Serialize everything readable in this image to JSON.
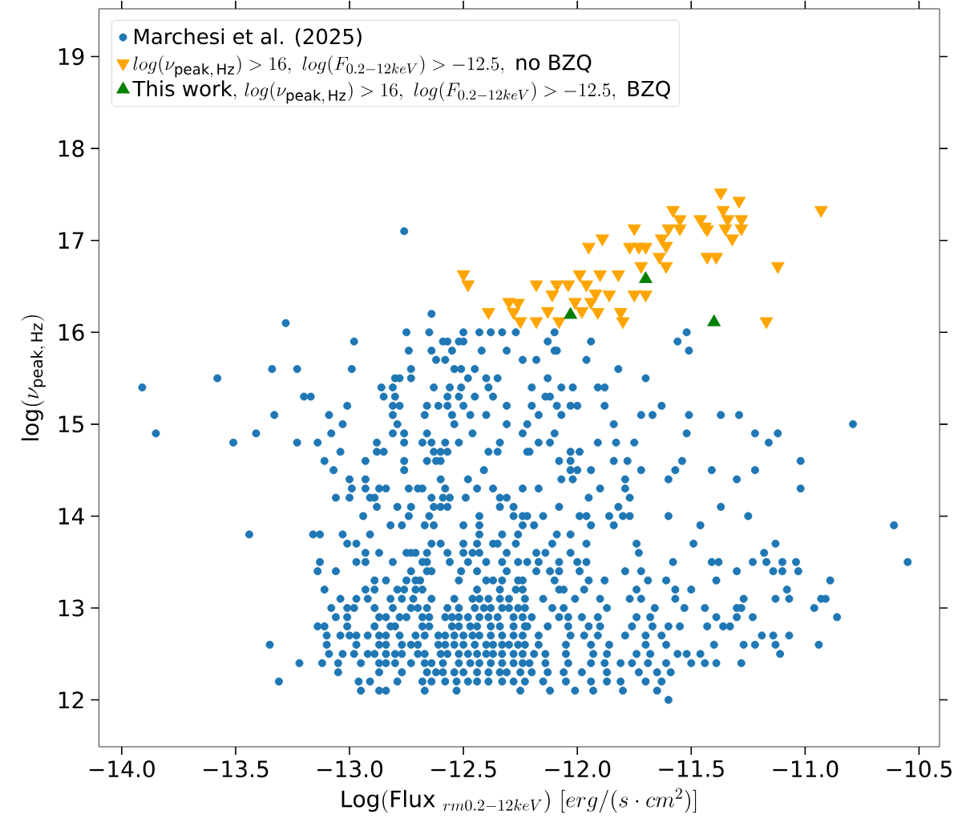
{
  "chart_data": {
    "type": "scatter",
    "xlabel": "\\mathrm{Log(Flux}\\ _{rm0.2-12keV})\\ [erg/(s\\cdot cm^{2})]",
    "ylabel": "\\mathrm{log}(\\nu_{\\mathrm{peak,\\,Hz}})",
    "xlim": [
      -14.1,
      -10.41
    ],
    "ylim": [
      11.49,
      19.52
    ],
    "xticks": [
      {
        "value": -14.0,
        "label": "−14.0"
      },
      {
        "value": -13.5,
        "label": "−13.5"
      },
      {
        "value": -13.0,
        "label": "−13.0"
      },
      {
        "value": -12.5,
        "label": "−12.5"
      },
      {
        "value": -12.0,
        "label": "−12.0"
      },
      {
        "value": -11.5,
        "label": "−11.5"
      },
      {
        "value": -11.0,
        "label": "−11.0"
      },
      {
        "value": -10.5,
        "label": "−10.5"
      }
    ],
    "yticks": [
      12,
      13,
      14,
      15,
      16,
      17,
      18,
      19
    ],
    "legend": "top left",
    "series": [
      {
        "name": "Marchesi et al. (2025)",
        "color": "#1f77b4",
        "marker": "circle",
        "x": [
          -12.76,
          -12.64,
          -13.28,
          -12.75,
          -12.65,
          -12.5,
          -12.43,
          -12.38,
          -12.33,
          -12.27,
          -12.1,
          -11.52,
          -12.98,
          -12.59,
          -12.57,
          -12.52,
          -12.5,
          -12.13,
          -11.94,
          -11.56,
          -12.74,
          -12.64,
          -12.55,
          -12.42,
          -12.31,
          -12.1,
          -12.09,
          -11.51,
          -12.62,
          -12.58,
          -12.24,
          -12.18,
          -11.96,
          -13.34,
          -13.23,
          -12.99,
          -12.73,
          -12.54,
          -12.51,
          -12.45,
          -11.82,
          -13.58,
          -12.8,
          -12.78,
          -12.73,
          -12.48,
          -12.4,
          -12.35,
          -12.13,
          -11.7,
          -13.91,
          -12.86,
          -12.81,
          -12.63,
          -12.56,
          -12.51,
          -12.39,
          -12.2,
          -12.07,
          -12.02,
          -11.91,
          -11.88,
          -13.2,
          -13.17,
          -12.85,
          -12.8,
          -12.57,
          -12.52,
          -12.45,
          -12.37,
          -12.14,
          -12.12,
          -13.01,
          -12.81,
          -12.78,
          -12.66,
          -12.61,
          -12.57,
          -12.5,
          -12.31,
          -12.2,
          -12.09,
          -12.03,
          -12.0,
          -11.88,
          -11.63,
          -13.33,
          -13.09,
          -12.81,
          -12.67,
          -12.55,
          -12.47,
          -12.4,
          -12.17,
          -12.07,
          -11.72,
          -11.67,
          -11.51,
          -11.37,
          -11.29,
          -13.03,
          -12.79,
          -12.54,
          -12.31,
          -12.22,
          -11.84,
          -10.79,
          -13.85,
          -13.41,
          -13.08,
          -12.81,
          -12.76,
          -12.66,
          -12.46,
          -12.24,
          -12.1,
          -11.52,
          -11.22,
          -11.12,
          -13.51,
          -13.23,
          -13.14,
          -12.88,
          -12.76,
          -12.68,
          -12.64,
          -12.58,
          -12.52,
          -12.34,
          -12.17,
          -12.12,
          -11.91,
          -11.83,
          -11.75,
          -11.16,
          -13.04,
          -12.88,
          -12.85,
          -12.63,
          -12.6,
          -12.57,
          -12.39,
          -12.35,
          -12.22,
          -12.21,
          -12.03,
          -11.99,
          -13.11,
          -12.93,
          -12.76,
          -12.66,
          -12.62,
          -12.6,
          -12.08,
          -12.03,
          -11.84,
          -11.78,
          -11.54,
          -11.02,
          -13.07,
          -12.76,
          -12.41,
          -12.03,
          -12.0,
          -11.94,
          -11.72,
          -11.57,
          -11.41,
          -11.22,
          -13.0,
          -12.93,
          -12.6,
          -12.48,
          -12.07,
          -12.02,
          -11.79,
          -11.6,
          -11.3,
          -12.99,
          -12.93,
          -12.87,
          -12.84,
          -12.74,
          -12.7,
          -12.68,
          -12.58,
          -12.44,
          -12.37,
          -12.24,
          -12.17,
          -11.9,
          -11.79,
          -11.02,
          -13.06,
          -13.0,
          -12.91,
          -12.89,
          -12.64,
          -12.59,
          -12.56,
          -12.49,
          -12.34,
          -12.31,
          -11.95,
          -11.77,
          -12.88,
          -12.79,
          -12.73,
          -12.63,
          -12.6,
          -12.57,
          -12.34,
          -12.28,
          -12.08,
          -11.82,
          -11.37,
          -12.94,
          -12.74,
          -12.65,
          -12.43,
          -12.24,
          -12.22,
          -12.28,
          -12.15,
          -11.99,
          -11.96,
          -11.86,
          -11.8,
          -11.77,
          -11.6,
          -11.25,
          -12.82,
          -12.77,
          -12.67,
          -12.63,
          -12.5,
          -12.43,
          -12.24,
          -12.19,
          -11.94,
          -11.84,
          -11.46,
          -10.61,
          -13.44,
          -13.16,
          -13.13,
          -13.03,
          -12.91,
          -12.43,
          -12.33,
          -12.26,
          -12.09,
          -12.03,
          -13.01,
          -12.97,
          -12.64,
          -12.6,
          -12.5,
          -12.44,
          -12.37,
          -12.35,
          -12.27,
          -12.11,
          -11.96,
          -11.74,
          -11.49,
          -11.13,
          -12.93,
          -12.87,
          -12.75,
          -12.73,
          -12.71,
          -12.66,
          -12.57,
          -12.5,
          -12.46,
          -12.43,
          -12.31,
          -12.18,
          -12.14,
          -12.03,
          -11.73,
          -11.18,
          -13.13,
          -12.97,
          -12.93,
          -12.81,
          -12.68,
          -12.66,
          -12.56,
          -12.48,
          -12.4,
          -12.33,
          -12.26,
          -12.22,
          -12.17,
          -12.08,
          -12.0,
          -11.96,
          -11.58,
          -11.41,
          -11.38,
          -11.23,
          -11.17,
          -11.1,
          -11.04,
          -10.55,
          -13.14,
          -13.06,
          -12.73,
          -12.66,
          -12.64,
          -12.51,
          -12.44,
          -12.31,
          -12.18,
          -12.12,
          -12.08,
          -11.99,
          -11.79,
          -11.72,
          -11.3,
          -11.14,
          -11.1,
          -11.03,
          -12.89,
          -12.84,
          -12.75,
          -12.71,
          -12.69,
          -12.52,
          -12.4,
          -12.37,
          -12.33,
          -12.26,
          -12.24,
          -12.1,
          -11.95,
          -11.88,
          -11.69,
          -11.61,
          -11.39,
          -10.89,
          -13.11,
          -12.93,
          -12.89,
          -12.79,
          -12.76,
          -12.71,
          -12.68,
          -12.44,
          -12.34,
          -12.27,
          -12.24,
          -12.08,
          -12.06,
          -11.97,
          -11.74,
          -11.57,
          -11.5,
          -11.08,
          -13.04,
          -12.97,
          -12.92,
          -12.82,
          -12.77,
          -12.72,
          -12.64,
          -12.54,
          -12.46,
          -12.43,
          -12.39,
          -12.34,
          -12.3,
          -12.23,
          -12.15,
          -12.01,
          -11.9,
          -11.77,
          -11.72,
          -11.57,
          -11.27,
          -11.13,
          -11.07,
          -10.93,
          -10.91,
          -13.08,
          -13.01,
          -12.98,
          -12.89,
          -12.81,
          -12.73,
          -12.7,
          -12.66,
          -12.57,
          -12.52,
          -12.45,
          -12.41,
          -12.38,
          -12.33,
          -12.3,
          -12.26,
          -12.23,
          -12.11,
          -12.06,
          -11.87,
          -11.66,
          -11.53,
          -11.44,
          -11.3,
          -11.28,
          -10.96,
          -13.06,
          -13.01,
          -12.87,
          -12.84,
          -12.78,
          -12.75,
          -12.68,
          -12.65,
          -12.58,
          -12.55,
          -12.52,
          -12.48,
          -12.43,
          -12.39,
          -12.35,
          -12.28,
          -12.24,
          -12.2,
          -12.08,
          -12.04,
          -11.98,
          -11.91,
          -11.74,
          -11.68,
          -11.39,
          -11.3,
          -11.23,
          -10.86,
          -13.14,
          -13.11,
          -13.01,
          -12.89,
          -12.82,
          -12.8,
          -12.68,
          -12.65,
          -12.55,
          -12.52,
          -12.47,
          -12.44,
          -12.38,
          -12.34,
          -12.28,
          -12.23,
          -12.22,
          -12.13,
          -12.04,
          -11.95,
          -11.9,
          -11.76,
          -11.67,
          -11.6,
          -11.55,
          -11.43,
          -11.36,
          -11.33,
          -13.1,
          -13.04,
          -13.0,
          -12.97,
          -12.92,
          -12.87,
          -12.84,
          -12.78,
          -12.71,
          -12.67,
          -12.61,
          -12.58,
          -12.54,
          -12.5,
          -12.46,
          -12.43,
          -12.38,
          -12.33,
          -12.28,
          -12.24,
          -12.17,
          -12.03,
          -11.97,
          -11.91,
          -11.79,
          -11.7,
          -11.63,
          -11.19,
          -11.14,
          -11.07,
          -13.35,
          -13.1,
          -12.97,
          -12.87,
          -12.84,
          -12.77,
          -12.73,
          -12.7,
          -12.61,
          -12.58,
          -12.54,
          -12.5,
          -12.45,
          -12.4,
          -12.37,
          -12.33,
          -12.3,
          -12.26,
          -12.23,
          -12.17,
          -12.05,
          -11.94,
          -11.86,
          -11.7,
          -11.61,
          -11.4,
          -11.27,
          -11.22,
          -11.13,
          -10.94,
          -13.09,
          -13.03,
          -12.98,
          -12.92,
          -12.89,
          -12.84,
          -12.8,
          -12.77,
          -12.7,
          -12.67,
          -12.6,
          -12.57,
          -12.52,
          -12.48,
          -12.44,
          -12.4,
          -12.37,
          -12.33,
          -12.28,
          -12.24,
          -12.19,
          -12.14,
          -12.05,
          -11.93,
          -11.87,
          -11.74,
          -11.68,
          -11.56,
          -11.52,
          -11.46,
          -11.11,
          -13.22,
          -13.12,
          -13.05,
          -12.95,
          -12.87,
          -12.84,
          -12.8,
          -12.73,
          -12.67,
          -12.64,
          -12.59,
          -12.52,
          -12.47,
          -12.43,
          -12.38,
          -12.33,
          -12.28,
          -12.24,
          -12.21,
          -12.14,
          -12.04,
          -11.94,
          -11.88,
          -11.81,
          -11.76,
          -11.69,
          -11.61,
          -11.5,
          -11.44,
          -11.39,
          -11.28,
          -13.05,
          -12.87,
          -12.77,
          -12.66,
          -12.62,
          -12.59,
          -12.54,
          -12.5,
          -12.44,
          -12.39,
          -12.34,
          -12.31,
          -12.25,
          -12.2,
          -12.13,
          -12.06,
          -11.98,
          -11.87,
          -11.73,
          -11.65,
          -11.59,
          -13.31,
          -12.96,
          -12.91,
          -12.79,
          -12.68,
          -12.64,
          -12.58,
          -12.53,
          -12.48,
          -12.44,
          -12.39,
          -12.33,
          -12.28,
          -12.23,
          -12.15,
          -12.05,
          -11.94,
          -11.87,
          -11.81,
          -11.7,
          -11.63,
          -12.95,
          -12.87,
          -12.84,
          -12.67,
          -12.53,
          -12.25,
          -12.12,
          -12.01,
          -11.93,
          -11.8,
          -11.65,
          -11.6
        ],
        "values": [
          17.1,
          16.2,
          16.1,
          16.0,
          16.0,
          16.0,
          16.0,
          16.0,
          16.0,
          16.0,
          16.0,
          16.0,
          15.9,
          15.9,
          15.9,
          15.9,
          15.9,
          15.9,
          15.9,
          15.9,
          15.8,
          15.8,
          15.8,
          15.8,
          15.8,
          15.8,
          15.8,
          15.8,
          15.7,
          15.7,
          15.7,
          15.7,
          15.7,
          15.6,
          15.6,
          15.6,
          15.6,
          15.6,
          15.6,
          15.6,
          15.6,
          15.5,
          15.5,
          15.5,
          15.5,
          15.5,
          15.5,
          15.5,
          15.5,
          15.5,
          15.4,
          15.4,
          15.4,
          15.4,
          15.4,
          15.4,
          15.4,
          15.4,
          15.4,
          15.4,
          15.4,
          15.4,
          15.3,
          15.3,
          15.3,
          15.3,
          15.3,
          15.3,
          15.3,
          15.3,
          15.3,
          15.3,
          15.2,
          15.2,
          15.2,
          15.2,
          15.2,
          15.2,
          15.2,
          15.2,
          15.2,
          15.2,
          15.2,
          15.2,
          15.2,
          15.2,
          15.1,
          15.1,
          15.1,
          15.1,
          15.1,
          15.1,
          15.1,
          15.1,
          15.1,
          15.1,
          15.1,
          15.1,
          15.1,
          15.1,
          15.0,
          15.0,
          15.0,
          15.0,
          15.0,
          15.0,
          15.0,
          14.9,
          14.9,
          14.9,
          14.9,
          14.9,
          14.9,
          14.9,
          14.9,
          14.9,
          14.9,
          14.9,
          14.9,
          14.8,
          14.8,
          14.8,
          14.8,
          14.8,
          14.8,
          14.8,
          14.8,
          14.8,
          14.8,
          14.8,
          14.8,
          14.8,
          14.8,
          14.8,
          14.8,
          14.7,
          14.7,
          14.7,
          14.7,
          14.7,
          14.7,
          14.7,
          14.7,
          14.7,
          14.7,
          14.7,
          14.7,
          14.6,
          14.6,
          14.6,
          14.6,
          14.6,
          14.6,
          14.6,
          14.6,
          14.6,
          14.6,
          14.6,
          14.6,
          14.5,
          14.5,
          14.5,
          14.5,
          14.5,
          14.5,
          14.5,
          14.5,
          14.5,
          14.5,
          14.4,
          14.4,
          14.4,
          14.4,
          14.4,
          14.4,
          14.4,
          14.4,
          14.4,
          14.3,
          14.3,
          14.3,
          14.3,
          14.3,
          14.3,
          14.3,
          14.3,
          14.3,
          14.3,
          14.3,
          14.3,
          14.3,
          14.3,
          14.3,
          14.2,
          14.2,
          14.2,
          14.2,
          14.2,
          14.2,
          14.2,
          14.2,
          14.2,
          14.2,
          14.2,
          14.2,
          14.1,
          14.1,
          14.1,
          14.1,
          14.1,
          14.1,
          14.1,
          14.1,
          14.1,
          14.1,
          14.1,
          14.0,
          14.0,
          14.0,
          14.0,
          14.0,
          14.0,
          14.0,
          14.0,
          14.0,
          14.0,
          14.0,
          14.0,
          14.0,
          14.0,
          14.0,
          13.9,
          13.9,
          13.9,
          13.9,
          13.9,
          13.9,
          13.9,
          13.9,
          13.9,
          13.9,
          13.9,
          13.9,
          13.8,
          13.8,
          13.8,
          13.8,
          13.8,
          13.8,
          13.8,
          13.8,
          13.8,
          13.8,
          13.7,
          13.7,
          13.7,
          13.7,
          13.7,
          13.7,
          13.7,
          13.7,
          13.7,
          13.7,
          13.7,
          13.7,
          13.7,
          13.7,
          13.6,
          13.6,
          13.6,
          13.6,
          13.6,
          13.6,
          13.6,
          13.6,
          13.6,
          13.6,
          13.6,
          13.6,
          13.6,
          13.6,
          13.6,
          13.6,
          13.5,
          13.5,
          13.5,
          13.5,
          13.5,
          13.5,
          13.5,
          13.5,
          13.5,
          13.5,
          13.5,
          13.5,
          13.5,
          13.5,
          13.5,
          13.5,
          13.5,
          13.5,
          13.5,
          13.5,
          13.5,
          13.5,
          13.5,
          13.5,
          13.4,
          13.4,
          13.4,
          13.4,
          13.4,
          13.4,
          13.4,
          13.4,
          13.4,
          13.4,
          13.4,
          13.4,
          13.4,
          13.4,
          13.4,
          13.4,
          13.4,
          13.4,
          13.3,
          13.3,
          13.3,
          13.3,
          13.3,
          13.3,
          13.3,
          13.3,
          13.3,
          13.3,
          13.3,
          13.3,
          13.3,
          13.3,
          13.3,
          13.3,
          13.3,
          13.3,
          13.2,
          13.2,
          13.2,
          13.2,
          13.2,
          13.2,
          13.2,
          13.2,
          13.2,
          13.2,
          13.2,
          13.2,
          13.2,
          13.2,
          13.2,
          13.2,
          13.2,
          13.2,
          13.1,
          13.1,
          13.1,
          13.1,
          13.1,
          13.1,
          13.1,
          13.1,
          13.1,
          13.1,
          13.1,
          13.1,
          13.1,
          13.1,
          13.1,
          13.1,
          13.1,
          13.1,
          13.1,
          13.1,
          13.1,
          13.1,
          13.1,
          13.1,
          13.1,
          13.0,
          13.0,
          13.0,
          13.0,
          13.0,
          13.0,
          13.0,
          13.0,
          13.0,
          13.0,
          13.0,
          13.0,
          13.0,
          13.0,
          13.0,
          13.0,
          13.0,
          13.0,
          13.0,
          13.0,
          13.0,
          13.0,
          13.0,
          13.0,
          13.0,
          13.0,
          12.9,
          12.9,
          12.9,
          12.9,
          12.9,
          12.9,
          12.9,
          12.9,
          12.9,
          12.9,
          12.9,
          12.9,
          12.9,
          12.9,
          12.9,
          12.9,
          12.9,
          12.9,
          12.9,
          12.9,
          12.9,
          12.9,
          12.9,
          12.9,
          12.9,
          12.9,
          12.9,
          12.9,
          12.8,
          12.8,
          12.8,
          12.8,
          12.8,
          12.8,
          12.8,
          12.8,
          12.8,
          12.8,
          12.8,
          12.8,
          12.8,
          12.8,
          12.8,
          12.8,
          12.8,
          12.8,
          12.8,
          12.8,
          12.8,
          12.8,
          12.8,
          12.8,
          12.8,
          12.8,
          12.8,
          12.8,
          12.7,
          12.7,
          12.7,
          12.7,
          12.7,
          12.7,
          12.7,
          12.7,
          12.7,
          12.7,
          12.7,
          12.7,
          12.7,
          12.7,
          12.7,
          12.7,
          12.7,
          12.7,
          12.7,
          12.7,
          12.7,
          12.7,
          12.7,
          12.7,
          12.7,
          12.7,
          12.7,
          12.7,
          12.7,
          12.7,
          12.6,
          12.6,
          12.6,
          12.6,
          12.6,
          12.6,
          12.6,
          12.6,
          12.6,
          12.6,
          12.6,
          12.6,
          12.6,
          12.6,
          12.6,
          12.6,
          12.6,
          12.6,
          12.6,
          12.6,
          12.6,
          12.6,
          12.6,
          12.6,
          12.6,
          12.6,
          12.6,
          12.6,
          12.6,
          12.6,
          12.5,
          12.5,
          12.5,
          12.5,
          12.5,
          12.5,
          12.5,
          12.5,
          12.5,
          12.5,
          12.5,
          12.5,
          12.5,
          12.5,
          12.5,
          12.5,
          12.5,
          12.5,
          12.5,
          12.5,
          12.5,
          12.5,
          12.5,
          12.5,
          12.5,
          12.5,
          12.5,
          12.5,
          12.5,
          12.5,
          12.5,
          12.4,
          12.4,
          12.4,
          12.4,
          12.4,
          12.4,
          12.4,
          12.4,
          12.4,
          12.4,
          12.4,
          12.4,
          12.4,
          12.4,
          12.4,
          12.4,
          12.4,
          12.4,
          12.4,
          12.4,
          12.4,
          12.4,
          12.4,
          12.4,
          12.4,
          12.4,
          12.4,
          12.4,
          12.4,
          12.4,
          12.4,
          12.3,
          12.3,
          12.3,
          12.3,
          12.3,
          12.3,
          12.3,
          12.3,
          12.3,
          12.3,
          12.3,
          12.3,
          12.3,
          12.3,
          12.3,
          12.3,
          12.3,
          12.3,
          12.3,
          12.3,
          12.3,
          12.2,
          12.2,
          12.2,
          12.2,
          12.2,
          12.2,
          12.2,
          12.2,
          12.2,
          12.2,
          12.2,
          12.2,
          12.2,
          12.2,
          12.2,
          12.2,
          12.2,
          12.2,
          12.2,
          12.2,
          12.2,
          12.1,
          12.1,
          12.1,
          12.1,
          12.1,
          12.1,
          12.1,
          12.1,
          12.1,
          12.1,
          12.1,
          12.0
        ]
      },
      {
        "name": "log(\\nu_{\\mathrm{peak,\\,Hz}}) > 16,\\ log(F_{0.2-12keV}) > -12.5,\\ \\mathrm{no\\ BZQ}",
        "color": "#ffa500",
        "marker": "triangle_down",
        "x": [
          -12.5,
          -12.48,
          -12.39,
          -12.3,
          -12.26,
          -12.28,
          -12.25,
          -12.18,
          -12.18,
          -12.13,
          -12.11,
          -12.09,
          -12.08,
          -12.04,
          -12.01,
          -11.99,
          -11.98,
          -11.96,
          -11.95,
          -11.94,
          -11.92,
          -11.91,
          -11.9,
          -11.89,
          -11.86,
          -11.82,
          -11.81,
          -11.8,
          -11.75,
          -11.77,
          -11.73,
          -11.75,
          -11.72,
          -11.7,
          -11.7,
          -11.64,
          -11.63,
          -11.61,
          -11.6,
          -11.61,
          -11.58,
          -11.55,
          -11.55,
          -11.46,
          -11.44,
          -11.43,
          -11.43,
          -11.39,
          -11.37,
          -11.36,
          -11.34,
          -11.35,
          -11.32,
          -11.29,
          -11.28,
          -11.28,
          -11.17,
          -11.12,
          -10.93
        ],
        "values": [
          16.63,
          16.52,
          16.22,
          16.33,
          16.32,
          16.22,
          16.12,
          16.12,
          16.52,
          16.23,
          16.41,
          16.52,
          16.12,
          16.52,
          16.33,
          16.63,
          16.23,
          16.52,
          16.93,
          16.33,
          16.42,
          16.22,
          16.63,
          17.02,
          16.41,
          16.63,
          16.22,
          16.12,
          17.13,
          16.93,
          16.93,
          16.41,
          16.72,
          16.41,
          16.93,
          16.82,
          17.02,
          16.94,
          17.13,
          16.72,
          17.33,
          17.23,
          17.13,
          17.23,
          17.15,
          17.12,
          16.82,
          16.82,
          17.52,
          17.33,
          17.23,
          17.13,
          17.02,
          17.43,
          17.23,
          17.13,
          16.12,
          16.72,
          17.33
        ]
      },
      {
        "name": "\\mathrm{This\\ work,}\\ log(\\nu_{\\mathrm{peak,\\,Hz}}) > 16,\\ log(F_{0.2-12keV}) > -12.5,\\ \\mathrm{BZQ}",
        "color": "#008000",
        "marker": "triangle",
        "x": [
          -12.03,
          -11.7,
          -11.4
        ],
        "values": [
          16.19,
          16.58,
          16.11
        ]
      }
    ]
  }
}
